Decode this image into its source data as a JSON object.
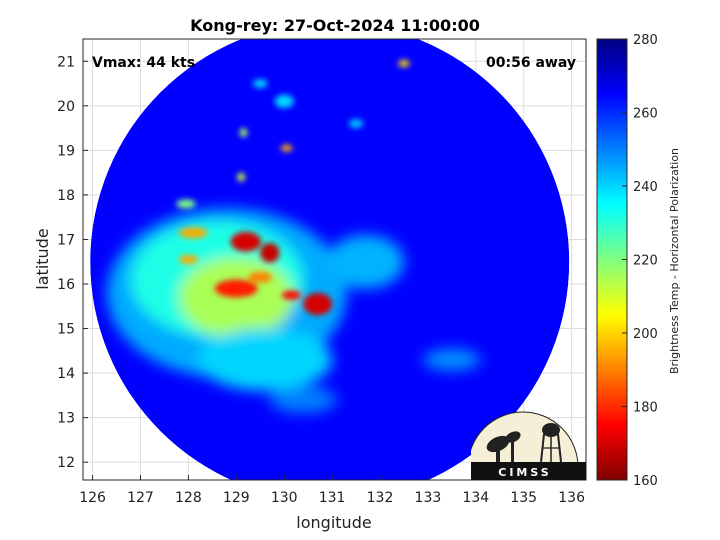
{
  "title": "Kong-rey: 27-Oct-2024 11:00:00",
  "annotations": {
    "vmax": "Vmax: 44 kts",
    "away": "00:56 away"
  },
  "xaxis": {
    "label": "longitude",
    "range": [
      125.8,
      136.3
    ],
    "ticks": [
      126,
      127,
      128,
      129,
      130,
      131,
      132,
      133,
      134,
      135,
      136
    ]
  },
  "yaxis": {
    "label": "latitude",
    "range": [
      11.6,
      21.5
    ],
    "ticks": [
      12,
      13,
      14,
      15,
      16,
      17,
      18,
      19,
      20,
      21
    ]
  },
  "colorbar": {
    "label": "Brightness Temp - Horizontal Polarization",
    "range": [
      160,
      280
    ],
    "ticks": [
      160,
      180,
      200,
      220,
      240,
      260,
      280
    ],
    "colors": [
      "#800000",
      "#ff0000",
      "#ff8000",
      "#ffff00",
      "#80ff80",
      "#00ffff",
      "#0080ff",
      "#0000ff",
      "#000080"
    ]
  },
  "logo": {
    "text": "CIMSS"
  },
  "chart_data": {
    "type": "heatmap",
    "title": "Kong-rey: 27-Oct-2024 11:00:00",
    "xlabel": "longitude",
    "ylabel": "latitude",
    "xlim": [
      125.8,
      136.3
    ],
    "ylim": [
      11.6,
      21.5
    ],
    "grid": true,
    "scan_center": {
      "lon": 130.95,
      "lat": 16.5,
      "radius_deg": 5.0
    },
    "background_value": 265,
    "features": [
      {
        "lon": 128.8,
        "lat": 15.8,
        "rx": 2.5,
        "ry": 1.9,
        "value": 245
      },
      {
        "lon": 128.6,
        "lat": 16.1,
        "rx": 1.8,
        "ry": 1.3,
        "value": 232
      },
      {
        "lon": 129.0,
        "lat": 15.7,
        "rx": 1.2,
        "ry": 0.9,
        "value": 215
      },
      {
        "lon": 131.7,
        "lat": 16.5,
        "rx": 0.8,
        "ry": 0.6,
        "value": 244
      },
      {
        "lon": 129.6,
        "lat": 14.3,
        "rx": 1.4,
        "ry": 0.7,
        "value": 240
      },
      {
        "lon": 129.2,
        "lat": 16.95,
        "rx": 0.32,
        "ry": 0.22,
        "value": 170
      },
      {
        "lon": 129.7,
        "lat": 16.7,
        "rx": 0.2,
        "ry": 0.22,
        "value": 168
      },
      {
        "lon": 129.0,
        "lat": 15.9,
        "rx": 0.45,
        "ry": 0.2,
        "value": 178
      },
      {
        "lon": 130.7,
        "lat": 15.55,
        "rx": 0.3,
        "ry": 0.25,
        "value": 170
      },
      {
        "lon": 130.15,
        "lat": 15.75,
        "rx": 0.2,
        "ry": 0.1,
        "value": 175
      },
      {
        "lon": 128.1,
        "lat": 17.15,
        "rx": 0.3,
        "ry": 0.12,
        "value": 195
      },
      {
        "lon": 128.0,
        "lat": 16.55,
        "rx": 0.2,
        "ry": 0.1,
        "value": 195
      },
      {
        "lon": 129.5,
        "lat": 16.15,
        "rx": 0.25,
        "ry": 0.12,
        "value": 190
      },
      {
        "lon": 130.05,
        "lat": 19.05,
        "rx": 0.12,
        "ry": 0.08,
        "value": 195
      },
      {
        "lon": 132.5,
        "lat": 20.95,
        "rx": 0.12,
        "ry": 0.08,
        "value": 200
      },
      {
        "lon": 129.1,
        "lat": 18.4,
        "rx": 0.08,
        "ry": 0.1,
        "value": 210
      },
      {
        "lon": 129.15,
        "lat": 19.4,
        "rx": 0.08,
        "ry": 0.1,
        "value": 215
      },
      {
        "lon": 127.95,
        "lat": 17.8,
        "rx": 0.2,
        "ry": 0.1,
        "value": 220
      },
      {
        "lon": 129.5,
        "lat": 20.5,
        "rx": 0.15,
        "ry": 0.1,
        "value": 240
      },
      {
        "lon": 130.0,
        "lat": 20.1,
        "rx": 0.2,
        "ry": 0.15,
        "value": 240
      },
      {
        "lon": 131.5,
        "lat": 19.6,
        "rx": 0.15,
        "ry": 0.1,
        "value": 242
      },
      {
        "lon": 133.5,
        "lat": 14.3,
        "rx": 0.6,
        "ry": 0.25,
        "value": 248
      },
      {
        "lon": 130.4,
        "lat": 13.4,
        "rx": 0.7,
        "ry": 0.3,
        "value": 250
      }
    ]
  }
}
